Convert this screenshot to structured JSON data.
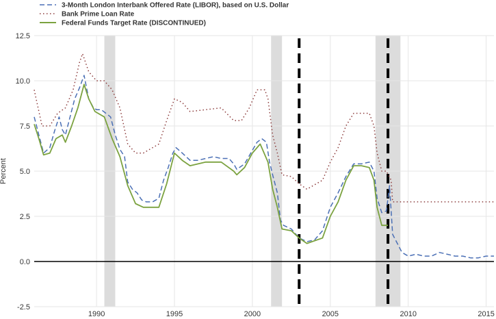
{
  "chart_data": {
    "type": "line",
    "title": "",
    "xlabel": "",
    "ylabel": "Percent",
    "xlim": [
      1986.0,
      2015.5
    ],
    "ylim": [
      -2.5,
      12.5
    ],
    "x_ticks": [
      1990,
      1995,
      2000,
      2005,
      2010,
      2015
    ],
    "y_ticks": [
      -2.5,
      0.0,
      2.5,
      5.0,
      7.5,
      10.0,
      12.5
    ],
    "y_tick_labels": [
      "-2.5",
      "0.0",
      "2.5",
      "5.0",
      "7.5",
      "10.0",
      "12.5"
    ],
    "grid": true,
    "legend": "top-left",
    "zero_line": 0,
    "recessions": [
      [
        1990.5,
        1991.2
      ],
      [
        2001.2,
        2001.9
      ],
      [
        2007.9,
        2009.5
      ]
    ],
    "vertical_markers": [
      2003.0,
      2008.7
    ],
    "series": [
      {
        "name": "3-Month London Interbank Offered Rate (LIBOR), based on U.S. Dollar",
        "color": "#4a6fb5",
        "style": "dashed",
        "x": [
          1986.0,
          1986.3,
          1986.6,
          1987.0,
          1987.3,
          1987.6,
          1987.8,
          1988.0,
          1988.3,
          1988.6,
          1988.9,
          1989.2,
          1989.5,
          1989.8,
          1990.0,
          1990.3,
          1990.6,
          1990.9,
          1991.2,
          1991.5,
          1991.8,
          1992.0,
          1992.3,
          1992.6,
          1992.9,
          1993.2,
          1993.6,
          1994.0,
          1994.3,
          1994.6,
          1994.9,
          1995.1,
          1995.5,
          1996.0,
          1996.5,
          1997.0,
          1997.5,
          1998.0,
          1998.5,
          1998.8,
          1999.0,
          1999.5,
          1999.9,
          2000.3,
          2000.6,
          2000.9,
          2001.1,
          2001.3,
          2001.6,
          2001.8,
          2002.0,
          2002.5,
          2003.0,
          2003.5,
          2004.0,
          2004.5,
          2005.0,
          2005.5,
          2006.0,
          2006.5,
          2007.0,
          2007.5,
          2007.8,
          2008.0,
          2008.3,
          2008.6,
          2008.8,
          2009.0,
          2009.3,
          2009.6,
          2010.0,
          2010.5,
          2011.0,
          2011.5,
          2012.0,
          2012.5,
          2013.0,
          2013.5,
          2014.0,
          2014.5,
          2015.0,
          2015.5
        ],
        "y": [
          8.0,
          7.0,
          6.0,
          6.3,
          7.2,
          8.0,
          7.3,
          7.0,
          8.0,
          9.0,
          9.6,
          10.3,
          9.0,
          8.5,
          8.4,
          8.4,
          8.2,
          8.0,
          7.0,
          6.2,
          5.8,
          4.4,
          4.0,
          3.8,
          3.4,
          3.3,
          3.3,
          3.5,
          4.5,
          5.2,
          6.0,
          6.3,
          6.0,
          5.6,
          5.6,
          5.7,
          5.8,
          5.7,
          5.7,
          5.4,
          5.1,
          5.4,
          6.0,
          6.6,
          6.8,
          6.6,
          5.5,
          4.8,
          3.8,
          2.3,
          2.0,
          1.8,
          1.3,
          1.1,
          1.2,
          1.7,
          3.0,
          3.8,
          4.7,
          5.4,
          5.4,
          5.5,
          5.0,
          3.5,
          2.7,
          2.8,
          4.2,
          1.5,
          1.0,
          0.5,
          0.3,
          0.4,
          0.3,
          0.3,
          0.5,
          0.4,
          0.3,
          0.3,
          0.2,
          0.2,
          0.3,
          0.3
        ]
      },
      {
        "name": "Bank Prime Loan Rate",
        "color": "#8b3a3a",
        "style": "dotted",
        "x": [
          1986.0,
          1986.5,
          1987.0,
          1987.5,
          1988.0,
          1988.5,
          1988.9,
          1989.1,
          1989.5,
          1990.0,
          1990.5,
          1991.0,
          1991.5,
          1992.0,
          1992.5,
          1993.0,
          1994.0,
          1994.5,
          1995.0,
          1995.5,
          1996.0,
          1997.0,
          1998.0,
          1998.8,
          1999.3,
          1999.8,
          2000.3,
          2000.8,
          2001.0,
          2001.3,
          2001.6,
          2001.9,
          2002.5,
          2003.0,
          2003.5,
          2004.5,
          2005.0,
          2005.5,
          2006.0,
          2006.5,
          2007.0,
          2007.5,
          2007.8,
          2008.0,
          2008.3,
          2008.6,
          2008.9,
          2009.0,
          2010.0,
          2012.0,
          2015.5
        ],
        "y": [
          9.5,
          7.5,
          7.5,
          8.2,
          8.5,
          9.5,
          11.0,
          11.5,
          10.5,
          10.0,
          10.0,
          9.5,
          8.5,
          6.5,
          6.0,
          6.0,
          6.5,
          7.8,
          9.0,
          8.8,
          8.3,
          8.4,
          8.5,
          7.8,
          7.8,
          8.5,
          9.5,
          9.5,
          9.0,
          7.0,
          6.0,
          4.8,
          4.7,
          4.3,
          4.0,
          4.5,
          5.5,
          6.3,
          7.5,
          8.2,
          8.2,
          8.2,
          7.5,
          6.0,
          5.0,
          5.0,
          4.5,
          3.3,
          3.3,
          3.3,
          3.3
        ]
      },
      {
        "name": "Federal Funds Target Rate (DISCONTINUED)",
        "color": "#7ba23f",
        "style": "solid",
        "x": [
          1986.0,
          1986.3,
          1986.6,
          1987.0,
          1987.4,
          1987.8,
          1988.0,
          1988.4,
          1988.8,
          1989.2,
          1989.5,
          1989.9,
          1990.5,
          1991.0,
          1991.5,
          1992.0,
          1992.5,
          1993.0,
          1994.0,
          1994.5,
          1995.0,
          1995.5,
          1996.0,
          1997.0,
          1998.0,
          1998.8,
          1999.0,
          1999.5,
          2000.0,
          2000.5,
          2001.0,
          2001.3,
          2001.6,
          2001.9,
          2002.5,
          2003.0,
          2003.5,
          2004.5,
          2005.0,
          2005.5,
          2006.0,
          2006.5,
          2007.0,
          2007.5,
          2007.8,
          2008.0,
          2008.3,
          2008.7
        ],
        "y": [
          7.6,
          6.8,
          5.9,
          6.0,
          6.8,
          7.0,
          6.6,
          7.5,
          8.5,
          9.8,
          9.0,
          8.3,
          8.0,
          6.8,
          5.8,
          4.2,
          3.2,
          3.0,
          3.0,
          4.3,
          6.0,
          5.6,
          5.3,
          5.5,
          5.5,
          5.0,
          4.8,
          5.2,
          6.0,
          6.5,
          5.5,
          4.0,
          3.0,
          1.8,
          1.7,
          1.3,
          1.0,
          1.3,
          2.5,
          3.3,
          4.5,
          5.3,
          5.3,
          5.2,
          4.5,
          3.0,
          2.0,
          2.0
        ]
      }
    ]
  }
}
